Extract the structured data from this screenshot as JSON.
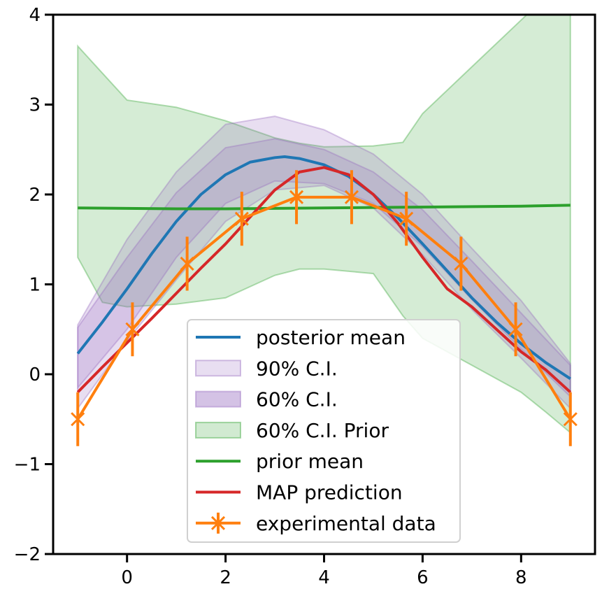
{
  "chart_data": {
    "type": "line",
    "title": "",
    "xlabel": "",
    "ylabel": "",
    "xlim": [
      -1.5,
      9.5
    ],
    "ylim": [
      -2,
      4
    ],
    "x_ticks": [
      0,
      2,
      4,
      6,
      8
    ],
    "y_ticks": [
      -2,
      -1,
      0,
      1,
      2,
      3,
      4
    ],
    "x_tick_labels": [
      "0",
      "2",
      "4",
      "6",
      "8"
    ],
    "y_tick_labels": [
      "−2",
      "−1",
      "0",
      "1",
      "2",
      "3",
      "4"
    ],
    "grid": false,
    "legend_position": "lower-center",
    "bands": [
      {
        "name": "90% C.I.",
        "color": "#9467bd",
        "opacity": 0.22,
        "x": [
          -1,
          0,
          1,
          2,
          3,
          4,
          5,
          6,
          7,
          8,
          9
        ],
        "lower": [
          -0.38,
          0.37,
          1.05,
          1.7,
          2.05,
          2.1,
          1.85,
          1.33,
          0.72,
          0.18,
          -0.38
        ],
        "upper": [
          0.55,
          1.5,
          2.25,
          2.78,
          2.87,
          2.72,
          2.45,
          2.0,
          1.4,
          0.82,
          0.12
        ]
      },
      {
        "name": "60% C.I.",
        "color": "#9467bd",
        "opacity": 0.22,
        "x": [
          -1,
          0,
          1,
          2,
          3,
          4,
          5,
          6,
          7,
          8,
          9
        ],
        "lower": [
          -0.15,
          0.5,
          1.3,
          1.9,
          2.15,
          2.12,
          1.9,
          1.42,
          0.83,
          0.28,
          -0.25
        ],
        "upper": [
          0.52,
          1.3,
          2.02,
          2.52,
          2.62,
          2.5,
          2.25,
          1.83,
          1.26,
          0.68,
          0.1
        ]
      },
      {
        "name": "60% C.I. Prior",
        "color": "#2ca02c",
        "opacity": 0.2,
        "x": [
          -1,
          -0.5,
          0,
          1,
          2,
          3,
          3.5,
          4,
          5,
          5.6,
          6,
          7,
          8,
          8.5,
          9
        ],
        "lower": [
          1.3,
          0.8,
          0.75,
          0.78,
          0.85,
          1.1,
          1.17,
          1.17,
          1.12,
          0.65,
          0.4,
          0.1,
          -0.2,
          -0.42,
          -0.65
        ],
        "upper": [
          3.65,
          3.35,
          3.05,
          2.97,
          2.82,
          2.63,
          2.57,
          2.53,
          2.54,
          2.58,
          2.9,
          3.42,
          3.94,
          4.2,
          4.45
        ]
      }
    ],
    "series": [
      {
        "name": "posterior mean",
        "color": "#1f77b4",
        "x": [
          -1,
          -0.5,
          0,
          0.5,
          1,
          1.5,
          2,
          2.5,
          3,
          3.2,
          3.5,
          4,
          4.5,
          5,
          5.5,
          6,
          6.5,
          7,
          7.5,
          8,
          8.5,
          9
        ],
        "y": [
          0.23,
          0.58,
          0.95,
          1.34,
          1.7,
          2.0,
          2.22,
          2.36,
          2.41,
          2.42,
          2.4,
          2.33,
          2.2,
          2.0,
          1.74,
          1.45,
          1.15,
          0.85,
          0.58,
          0.34,
          0.13,
          -0.05
        ]
      },
      {
        "name": "prior mean",
        "color": "#2ca02c",
        "x": [
          -1,
          0,
          1,
          2,
          3,
          4,
          5,
          6,
          7,
          8,
          9
        ],
        "y": [
          1.85,
          1.845,
          1.84,
          1.84,
          1.845,
          1.85,
          1.855,
          1.86,
          1.865,
          1.87,
          1.88
        ]
      },
      {
        "name": "MAP prediction",
        "color": "#d62728",
        "x": [
          -1,
          -0.5,
          0,
          0.5,
          1,
          1.5,
          2,
          2.5,
          3,
          3.5,
          4,
          4.5,
          5,
          5.5,
          6,
          6.5,
          7,
          7.5,
          8,
          8.5,
          9
        ],
        "y": [
          -0.2,
          0.08,
          0.35,
          0.62,
          0.9,
          1.18,
          1.45,
          1.75,
          2.05,
          2.25,
          2.3,
          2.22,
          2.0,
          1.68,
          1.3,
          0.95,
          0.75,
          0.5,
          0.25,
          0.05,
          -0.2
        ]
      }
    ],
    "errorbar_series": {
      "name": "experimental data",
      "color": "#ff7f0e",
      "marker": "x",
      "x": [
        -1,
        0.11,
        1.22,
        2.33,
        3.44,
        4.56,
        5.67,
        6.78,
        7.89,
        9
      ],
      "y": [
        -0.5,
        0.5,
        1.23,
        1.73,
        1.97,
        1.97,
        1.73,
        1.23,
        0.5,
        -0.5
      ],
      "yerr": [
        0.3,
        0.3,
        0.3,
        0.3,
        0.3,
        0.3,
        0.3,
        0.3,
        0.3,
        0.3
      ]
    },
    "legend": [
      {
        "label": "posterior mean",
        "kind": "line",
        "color": "#1f77b4"
      },
      {
        "label": "90% C.I.",
        "kind": "patch",
        "color": "#9467bd"
      },
      {
        "label": "60% C.I.",
        "kind": "patch-dark",
        "color": "#9467bd"
      },
      {
        "label": "60% C.I. Prior",
        "kind": "patch",
        "color": "#2ca02c"
      },
      {
        "label": "prior mean",
        "kind": "line",
        "color": "#2ca02c"
      },
      {
        "label": "MAP prediction",
        "kind": "line",
        "color": "#d62728"
      },
      {
        "label": "experimental data",
        "kind": "errorbar",
        "color": "#ff7f0e"
      }
    ]
  }
}
